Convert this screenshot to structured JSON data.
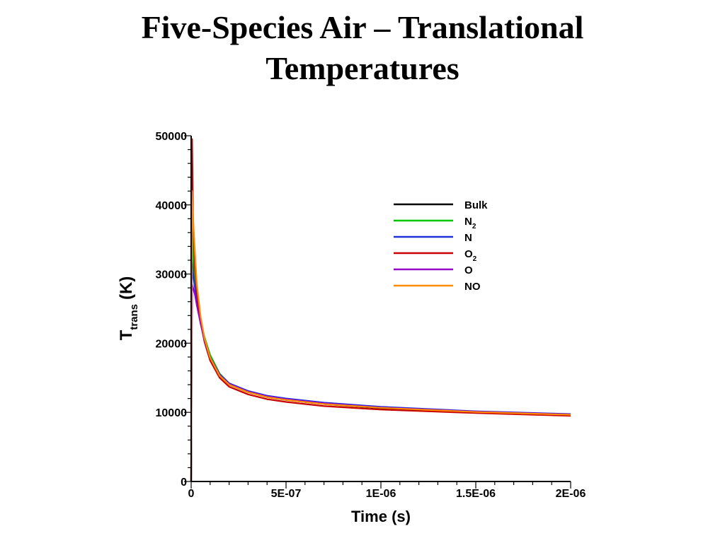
{
  "title": {
    "line1": "Five-Species Air – Translational",
    "line2": "Temperatures"
  },
  "chart_data": {
    "type": "line",
    "xlabel": "Time (s)",
    "ylabel": {
      "main": "T",
      "sub": "trans",
      "unit": "(K)"
    },
    "xlim": [
      0,
      2e-06
    ],
    "ylim": [
      0,
      50000
    ],
    "x_ticks": [
      {
        "value": 0,
        "label": "0"
      },
      {
        "value": 5e-07,
        "label": "5E-07"
      },
      {
        "value": 1e-06,
        "label": "1E-06"
      },
      {
        "value": 1.5e-06,
        "label": "1.5E-06"
      },
      {
        "value": 2e-06,
        "label": "2E-06"
      }
    ],
    "y_ticks": [
      {
        "value": 0,
        "label": "0"
      },
      {
        "value": 10000,
        "label": "10000"
      },
      {
        "value": 20000,
        "label": "20000"
      },
      {
        "value": 30000,
        "label": "30000"
      },
      {
        "value": 40000,
        "label": "40000"
      },
      {
        "value": 50000,
        "label": "50000"
      }
    ],
    "legend_position": "top-right",
    "series": [
      {
        "name": "Bulk",
        "sub": "",
        "color": "#000000",
        "x": [
          0,
          5e-09,
          1e-08,
          2e-08,
          3e-08,
          5e-08,
          7e-08,
          1e-07,
          1.5e-07,
          2e-07,
          3e-07,
          4e-07,
          5e-07,
          7e-07,
          1e-06,
          1.5e-06,
          2e-06
        ],
        "y": [
          0,
          48000,
          31000,
          28500,
          26000,
          23000,
          20500,
          17800,
          15300,
          14000,
          12900,
          12200,
          11800,
          11200,
          10600,
          10000,
          9600
        ]
      },
      {
        "name": "N",
        "sub": "2",
        "color": "#00c800",
        "x": [
          0,
          5e-09,
          1e-08,
          2e-08,
          3e-08,
          5e-08,
          7e-08,
          1e-07,
          1.5e-07,
          2e-07,
          3e-07,
          4e-07,
          5e-07,
          7e-07,
          1e-06,
          1.5e-06,
          2e-06
        ],
        "y": [
          0,
          40000,
          33000,
          29000,
          26500,
          23300,
          20900,
          18300,
          15600,
          14200,
          13000,
          12300,
          11900,
          11300,
          10700,
          10100,
          9700
        ]
      },
      {
        "name": "N",
        "sub": "",
        "color": "#1e32dc",
        "x": [
          0,
          5e-09,
          1e-08,
          2e-08,
          3e-08,
          5e-08,
          7e-08,
          1e-07,
          1.5e-07,
          2e-07,
          3e-07,
          4e-07,
          5e-07,
          7e-07,
          1e-06,
          1.5e-06,
          2e-06
        ],
        "y": [
          0,
          31000,
          30000,
          28000,
          26000,
          23000,
          20600,
          18000,
          15500,
          14200,
          13100,
          12400,
          12000,
          11400,
          10800,
          10150,
          9750
        ]
      },
      {
        "name": "O",
        "sub": "2",
        "color": "#c80000",
        "x": [
          0,
          5e-09,
          1e-08,
          2e-08,
          3e-08,
          5e-08,
          7e-08,
          1e-07,
          1.5e-07,
          2e-07,
          3e-07,
          4e-07,
          5e-07,
          7e-07,
          1e-06,
          1.5e-06,
          2e-06
        ],
        "y": [
          0,
          49500,
          38000,
          31000,
          27500,
          23000,
          20200,
          17500,
          15000,
          13700,
          12600,
          11900,
          11500,
          10900,
          10400,
          9900,
          9500
        ]
      },
      {
        "name": "O",
        "sub": "",
        "color": "#9600c8",
        "x": [
          0,
          5e-09,
          1e-08,
          2e-08,
          3e-08,
          5e-08,
          7e-08,
          1e-07,
          1.5e-07,
          2e-07,
          3e-07,
          4e-07,
          5e-07,
          7e-07,
          1e-06,
          1.5e-06,
          2e-06
        ],
        "y": [
          0,
          28500,
          28000,
          27000,
          25500,
          22800,
          20400,
          17900,
          15400,
          14100,
          13000,
          12300,
          11900,
          11300,
          10700,
          10100,
          9700
        ]
      },
      {
        "name": "NO",
        "sub": "",
        "color": "#ff8c00",
        "x": [
          0,
          5e-09,
          1e-08,
          2e-08,
          3e-08,
          5e-08,
          7e-08,
          1e-07,
          1.5e-07,
          2e-07,
          3e-07,
          4e-07,
          5e-07,
          7e-07,
          1e-06,
          1.5e-06,
          2e-06
        ],
        "y": [
          0,
          42000,
          38000,
          33000,
          28500,
          23800,
          20700,
          17900,
          15300,
          14000,
          12900,
          12200,
          11800,
          11200,
          10650,
          10050,
          9650
        ]
      }
    ]
  }
}
